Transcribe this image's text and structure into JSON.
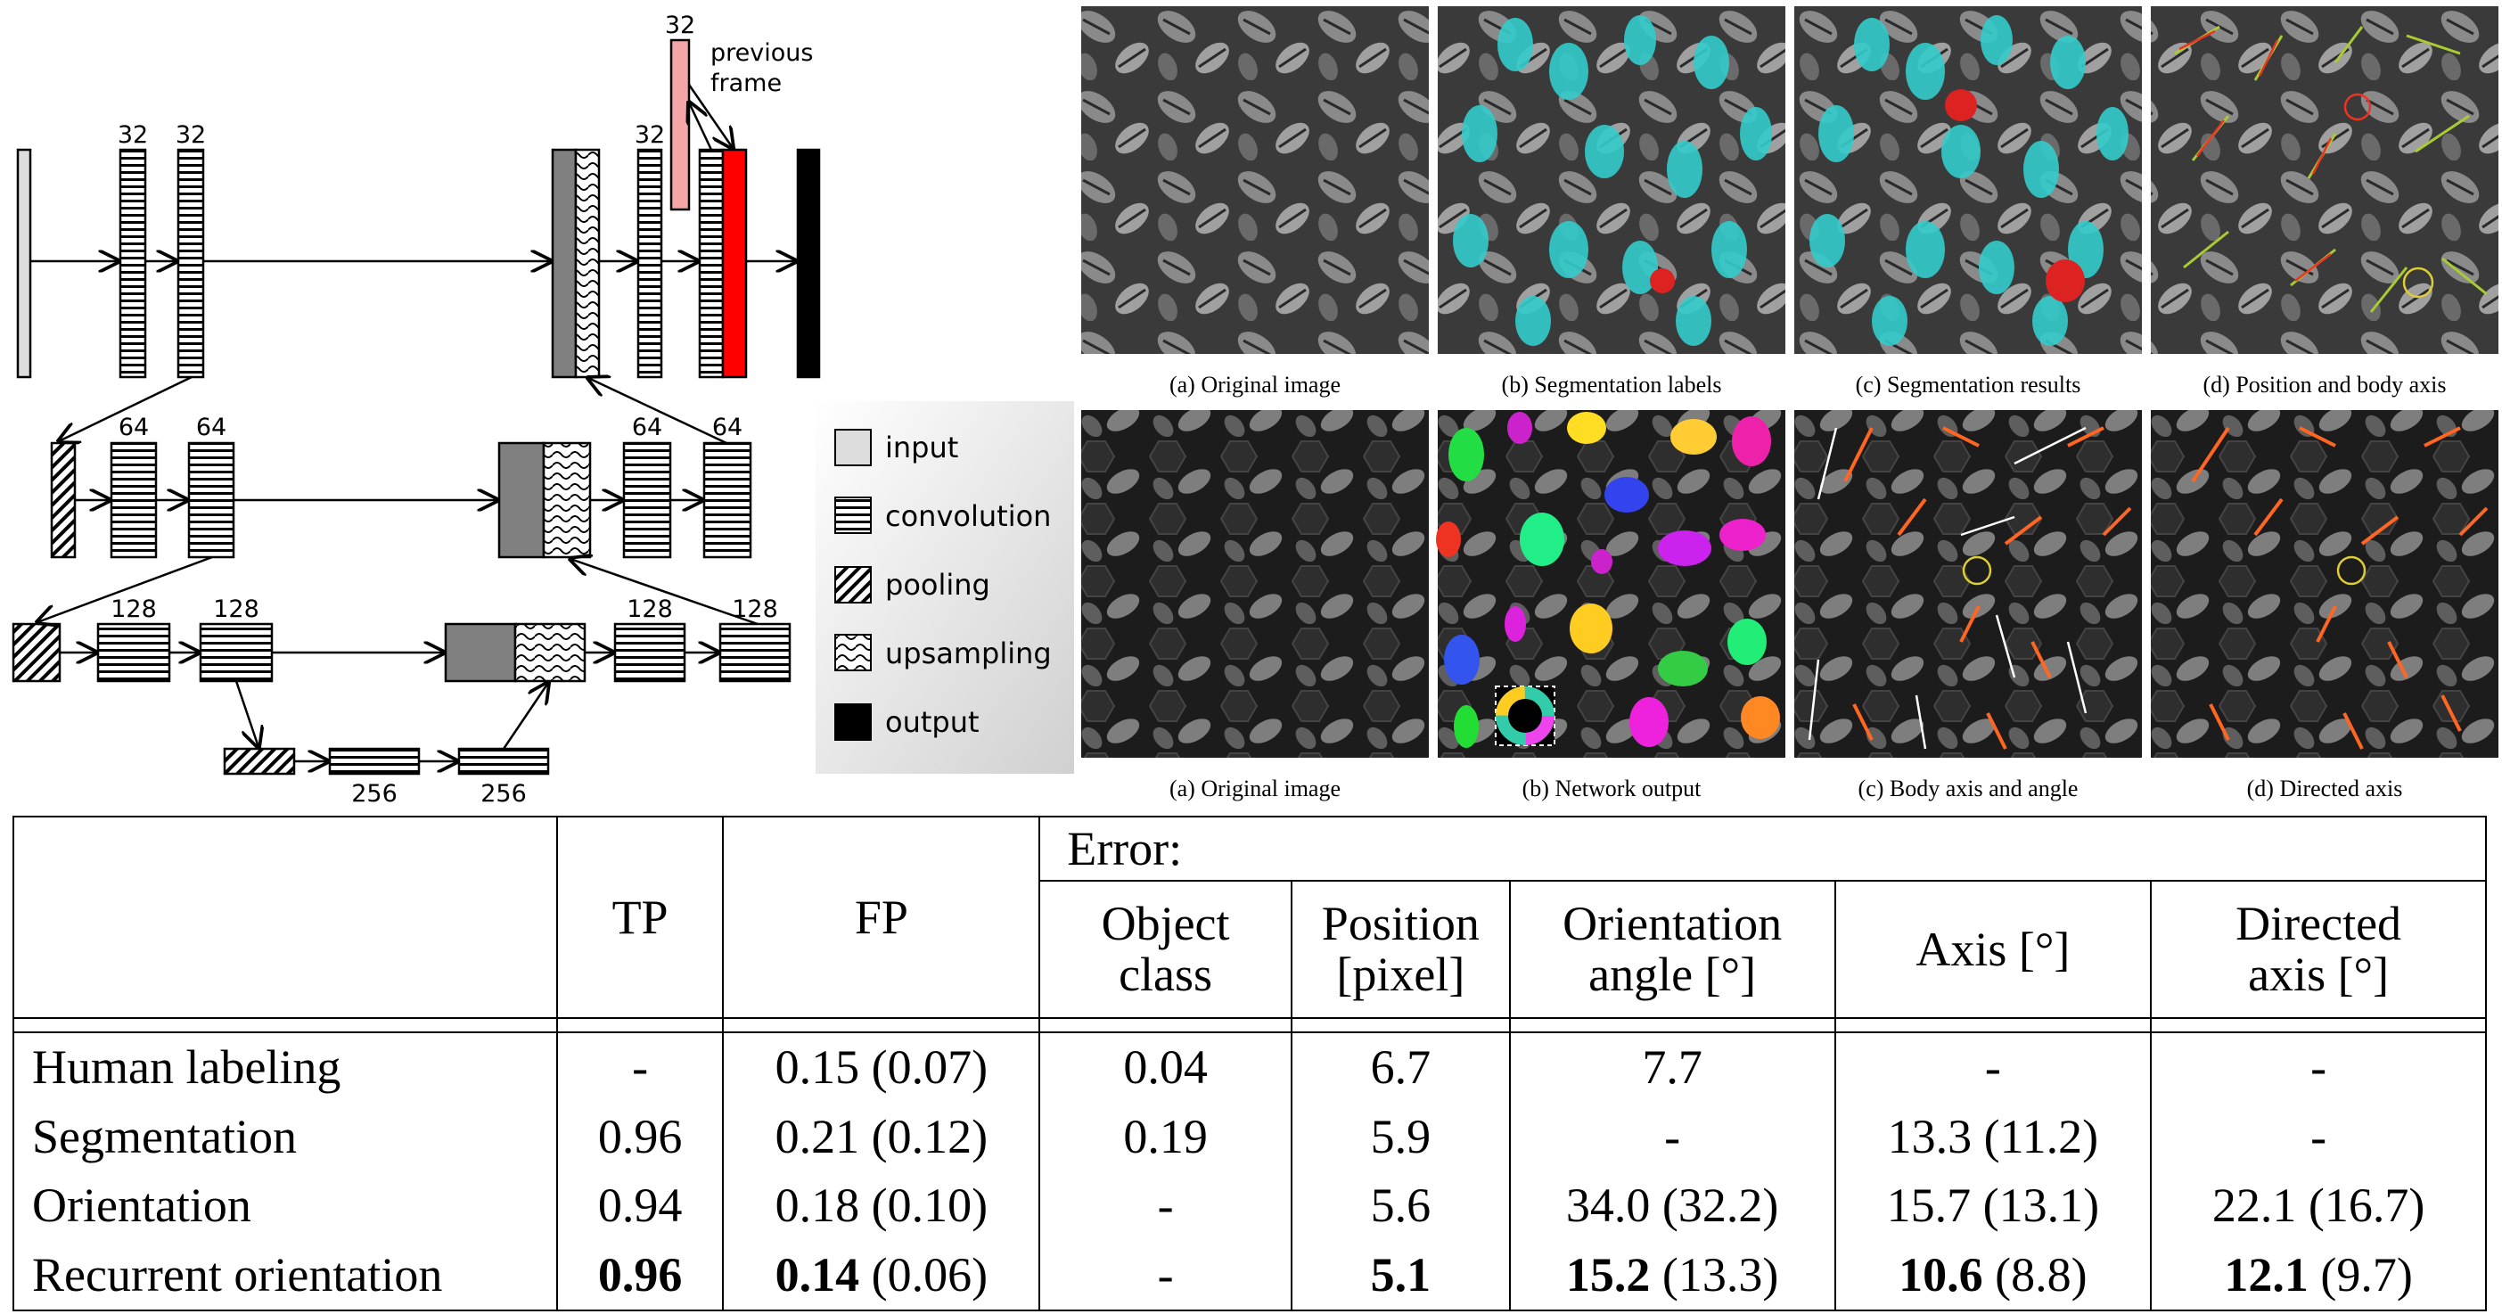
{
  "architecture": {
    "labels": {
      "l1a": "32",
      "l1b": "32",
      "l1c": "32",
      "prev_n": "32",
      "prev1": "previous",
      "prev2": "frame",
      "l2a": "64",
      "l2b": "64",
      "l2c": "64",
      "l2d": "64",
      "l3a": "128",
      "l3b": "128",
      "l3c": "128",
      "l3d": "128",
      "l4a": "256",
      "l4b": "256"
    },
    "legend": [
      "input",
      "convolution",
      "pooling",
      "upsampling",
      "output"
    ],
    "colors": {
      "recurrent": "#ff0000",
      "previous_frame": "#f4a6a6",
      "output": "#000000",
      "concat": "#808080",
      "input": "#dddddd"
    }
  },
  "figures": {
    "row1": [
      "(a) Original image",
      "(b) Segmentation labels",
      "(c) Segmentation results",
      "(d) Position and body axis"
    ],
    "row2": [
      "(a) Original image",
      "(b) Network output",
      "(c) Body axis and angle",
      "(d) Directed axis"
    ]
  },
  "table": {
    "header": {
      "tp": "TP",
      "fp": "FP",
      "error": "Error:",
      "c1a": "Object",
      "c1b": "class",
      "c2a": "Position",
      "c2b": "[pixel]",
      "c3a": "Orientation",
      "c3b": "angle [°]",
      "c4": "Axis [°]",
      "c5a": "Directed",
      "c5b": "axis [°]"
    },
    "rows": [
      {
        "name": "Human labeling",
        "tp": "-",
        "fp": "0.15 (0.07)",
        "obj": "0.04",
        "pos": "6.7",
        "ori": "7.7",
        "axis": "-",
        "dir": "-"
      },
      {
        "name": "Segmentation",
        "tp": "0.96",
        "fp": "0.21 (0.12)",
        "obj": "0.19",
        "pos": "5.9",
        "ori": "-",
        "axis": "13.3 (11.2)",
        "dir": "-"
      },
      {
        "name": "Orientation",
        "tp": "0.94",
        "fp": "0.18 (0.10)",
        "obj": "-",
        "pos": "5.6",
        "ori": "34.0 (32.2)",
        "axis": "15.7 (13.1)",
        "dir": "22.1 (16.7)"
      },
      {
        "name": "Recurrent orientation",
        "tp": "0.96",
        "fp_b": "0.14",
        "fp_r": " (0.06)",
        "obj": "-",
        "pos": "5.1",
        "ori_b": "15.2",
        "ori_r": " (13.3)",
        "axis_b": "10.6",
        "axis_r": " (8.8)",
        "dir_b": "12.1",
        "dir_r": " (9.7)"
      }
    ]
  }
}
